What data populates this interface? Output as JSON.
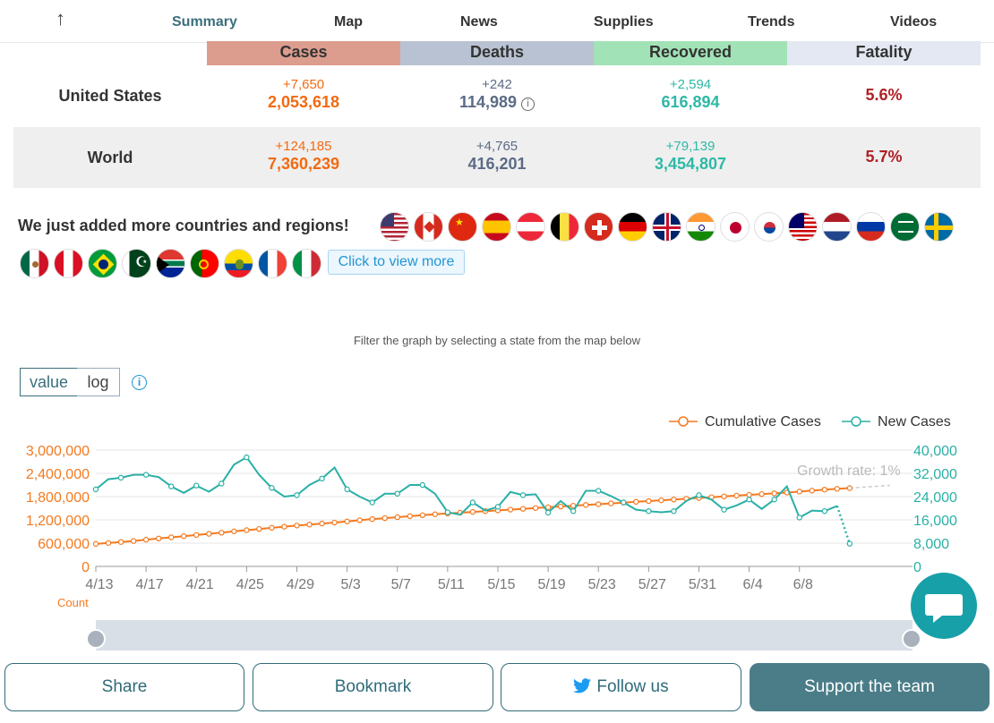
{
  "nav": {
    "up_icon": "arrow-up-icon",
    "tabs": [
      {
        "label": "Summary",
        "active": true
      },
      {
        "label": "Map"
      },
      {
        "label": "News"
      },
      {
        "label": "Supplies"
      },
      {
        "label": "Trends"
      },
      {
        "label": "Videos"
      }
    ]
  },
  "table": {
    "headers": [
      "Cases",
      "Deaths",
      "Recovered",
      "Fatality"
    ],
    "header_colors": [
      "#dc9d8e",
      "#b9c2d2",
      "#a1e2b6",
      "#e3e8f2"
    ],
    "rows": [
      {
        "name": "United States",
        "cases_delta": "+7,650",
        "cases": "2,053,618",
        "deaths_delta": "+242",
        "deaths": "114,989",
        "recovered_delta": "+2,594",
        "recovered": "616,894",
        "fatality": "5.6%"
      },
      {
        "name": "World",
        "cases_delta": "+124,185",
        "cases": "7,360,239",
        "deaths_delta": "+4,765",
        "deaths": "416,201",
        "recovered_delta": "+79,139",
        "recovered": "3,454,807",
        "fatality": "5.7%"
      }
    ]
  },
  "countries": {
    "title": "We just added more countries and regions!",
    "view_more": "Click to view more"
  },
  "graph": {
    "filter_hint": "Filter the graph by selecting a state from the map below",
    "scale_value": "value",
    "scale_log": "log",
    "legend_cumulative": "Cumulative Cases",
    "legend_new": "New Cases",
    "growth_rate": "Growth rate: 1%",
    "count_label": "Count"
  },
  "chart_data": {
    "type": "line",
    "x_ticks": [
      "4/13",
      "4/17",
      "4/21",
      "4/25",
      "4/29",
      "5/3",
      "5/7",
      "5/11",
      "5/15",
      "5/19",
      "5/23",
      "5/27",
      "5/31",
      "6/4",
      "6/8"
    ],
    "left_axis_ticks": [
      "0",
      "600,000",
      "1,200,000",
      "1,800,000",
      "2,400,000",
      "3,000,000"
    ],
    "right_axis_ticks": [
      "0",
      "8,000",
      "16,000",
      "24,000",
      "32,000",
      "40,000"
    ],
    "left_ylim": [
      0,
      3000000
    ],
    "right_ylim": [
      0,
      40000
    ],
    "series": [
      {
        "name": "Cumulative Cases",
        "color": "#f47a20",
        "axis": "left",
        "start_date": "4/13",
        "values": [
          580000,
          605000,
          630000,
          655000,
          690000,
          720000,
          750000,
          780000,
          810000,
          840000,
          870000,
          905000,
          935000,
          965000,
          995000,
          1025000,
          1055000,
          1080000,
          1105000,
          1130000,
          1160000,
          1190000,
          1220000,
          1245000,
          1270000,
          1295000,
          1320000,
          1345000,
          1365000,
          1385000,
          1405000,
          1425000,
          1445000,
          1465000,
          1485000,
          1505000,
          1525000,
          1545000,
          1565000,
          1585000,
          1605000,
          1625000,
          1645000,
          1665000,
          1685000,
          1705000,
          1725000,
          1745000,
          1765000,
          1785000,
          1805000,
          1825000,
          1845000,
          1865000,
          1885000,
          1905000,
          1930000,
          1955000,
          1980000,
          2000000,
          2020000
        ]
      },
      {
        "name": "New Cases",
        "color": "#2ab0a6",
        "axis": "right",
        "start_date": "4/13",
        "values": [
          26500,
          30000,
          30500,
          31500,
          31500,
          30700,
          27500,
          25300,
          27800,
          25700,
          28500,
          35000,
          37500,
          31500,
          27000,
          24000,
          24500,
          28000,
          30200,
          34000,
          26500,
          24000,
          22000,
          25000,
          25000,
          28000,
          28000,
          25000,
          18600,
          17800,
          22000,
          19200,
          20500,
          25600,
          24500,
          24800,
          18500,
          22500,
          19000,
          26000,
          26000,
          24200,
          22000,
          19500,
          19000,
          18600,
          19000,
          22500,
          24500,
          23000,
          19500,
          21000,
          23000,
          19800,
          23000,
          27500,
          16800,
          19200,
          19000,
          20800,
          7800
        ]
      }
    ]
  },
  "buttons": {
    "share": "Share",
    "bookmark": "Bookmark",
    "follow": "Follow us",
    "support": "Support the team"
  }
}
